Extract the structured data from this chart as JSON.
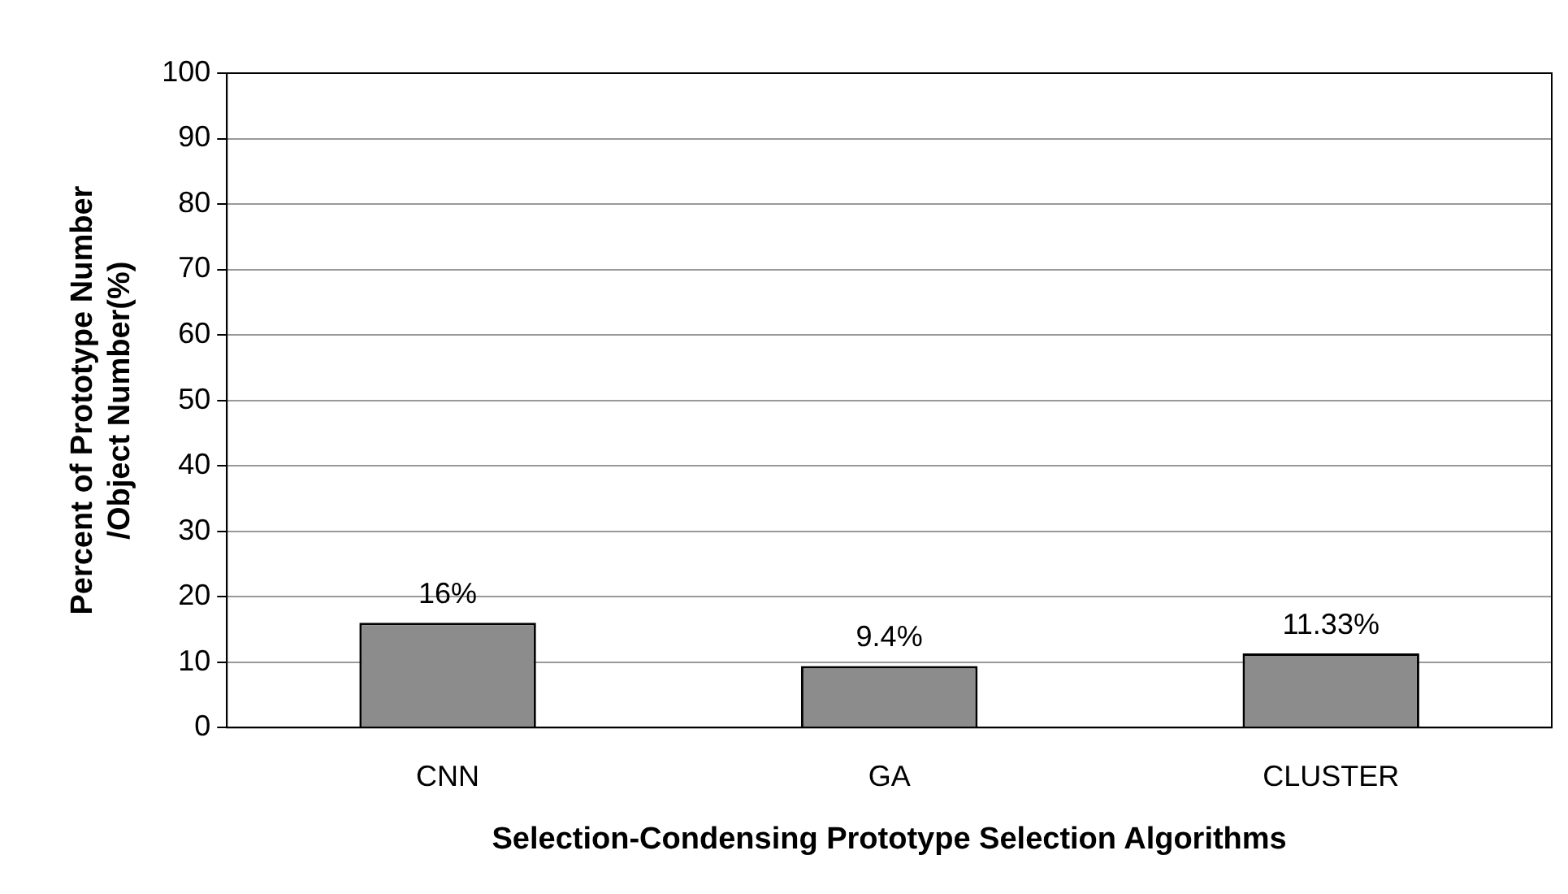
{
  "chart_data": {
    "type": "bar",
    "xlabel": "Selection-Condensing Prototype Selection Algorithms",
    "ylabel": "Percent of Prototype Number\n/Object Number(%)",
    "categories": [
      "CNN",
      "GA",
      "CLUSTER"
    ],
    "values": [
      16,
      9.4,
      11.33
    ],
    "value_labels": [
      "16%",
      "9.4%",
      "11.33%"
    ],
    "color": "#8c8c8c",
    "ylim": [
      0,
      100
    ],
    "yticks": [
      0,
      10,
      20,
      30,
      40,
      50,
      60,
      70,
      80,
      90,
      100
    ],
    "grid": "y",
    "legend": false
  }
}
